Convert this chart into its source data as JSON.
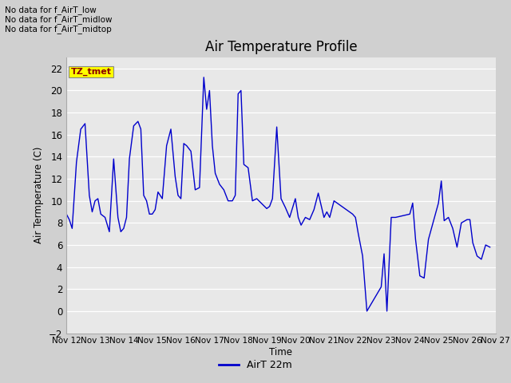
{
  "title": "Air Temperature Profile",
  "xlabel": "Time",
  "ylabel": "Air Termperature (C)",
  "legend_label": "AirT 22m",
  "legend_color": "#0000cc",
  "line_color": "#0000cc",
  "fig_facecolor": "#d0d0d0",
  "plot_bg_color": "#e8e8e8",
  "ylim": [
    -2,
    23
  ],
  "yticks": [
    -2,
    0,
    2,
    4,
    6,
    8,
    10,
    12,
    14,
    16,
    18,
    20,
    22
  ],
  "annotations_text": [
    "No data for f_AirT_low",
    "No data for f_AirT_midlow",
    "No data for f_AirT_midtop"
  ],
  "tz_label": "TZ_tmet",
  "x_labels": [
    "Nov 12",
    "Nov 13",
    "Nov 14",
    "Nov 15",
    "Nov 16",
    "Nov 17",
    "Nov 18",
    "Nov 19",
    "Nov 20",
    "Nov 21",
    "Nov 22",
    "Nov 23",
    "Nov 24",
    "Nov 25",
    "Nov 26",
    "Nov 27"
  ],
  "x_values": [
    12,
    13,
    14,
    15,
    16,
    17,
    18,
    19,
    20,
    21,
    22,
    23,
    24,
    25,
    26,
    27
  ],
  "time": [
    12.0,
    12.1,
    12.2,
    12.35,
    12.5,
    12.65,
    12.8,
    12.9,
    13.0,
    13.1,
    13.2,
    13.35,
    13.5,
    13.65,
    13.8,
    13.9,
    14.0,
    14.1,
    14.2,
    14.35,
    14.5,
    14.6,
    14.7,
    14.8,
    14.9,
    15.0,
    15.1,
    15.2,
    15.35,
    15.5,
    15.65,
    15.8,
    15.9,
    16.0,
    16.1,
    16.2,
    16.35,
    16.5,
    16.65,
    16.8,
    16.9,
    17.0,
    17.1,
    17.2,
    17.35,
    17.5,
    17.65,
    17.8,
    17.9,
    18.0,
    18.1,
    18.2,
    18.35,
    18.5,
    18.65,
    19.0,
    19.1,
    19.2,
    19.35,
    19.5,
    19.65,
    19.8,
    20.0,
    20.1,
    20.2,
    20.35,
    20.5,
    20.65,
    20.8,
    21.0,
    21.1,
    21.2,
    21.35,
    22.0,
    22.1,
    22.2,
    22.35,
    22.5,
    23.0,
    23.1,
    23.2,
    23.35,
    23.5,
    24.0,
    24.1,
    24.2,
    24.35,
    24.5,
    24.65,
    25.0,
    25.1,
    25.2,
    25.35,
    25.5,
    25.65,
    25.8,
    26.0,
    26.1,
    26.2,
    26.35,
    26.5,
    26.65,
    26.8
  ],
  "temp": [
    8.8,
    8.3,
    7.5,
    13.5,
    16.5,
    17.0,
    10.5,
    9.0,
    10.0,
    10.2,
    8.8,
    8.5,
    7.2,
    13.8,
    8.5,
    7.2,
    7.5,
    8.5,
    13.8,
    16.8,
    17.2,
    16.5,
    10.5,
    10.0,
    8.8,
    8.8,
    9.2,
    10.8,
    10.2,
    15.0,
    16.5,
    12.2,
    10.5,
    10.2,
    15.2,
    15.0,
    14.5,
    11.0,
    11.2,
    21.2,
    18.3,
    20.0,
    15.0,
    12.5,
    11.5,
    11.0,
    10.0,
    10.0,
    10.5,
    19.7,
    20.0,
    13.3,
    13.0,
    10.0,
    10.2,
    9.3,
    9.5,
    10.2,
    16.7,
    10.2,
    9.4,
    8.5,
    10.2,
    8.5,
    7.8,
    8.5,
    8.3,
    9.2,
    10.7,
    8.5,
    9.0,
    8.5,
    10.0,
    8.8,
    8.5,
    7.0,
    5.0,
    0.0,
    2.2,
    5.2,
    0.0,
    8.5,
    8.5,
    8.8,
    9.8,
    6.5,
    3.2,
    3.0,
    6.5,
    9.8,
    11.8,
    8.2,
    8.5,
    7.5,
    5.8,
    8.0,
    8.3,
    8.3,
    6.2,
    5.0,
    4.7,
    6.0,
    5.8
  ]
}
